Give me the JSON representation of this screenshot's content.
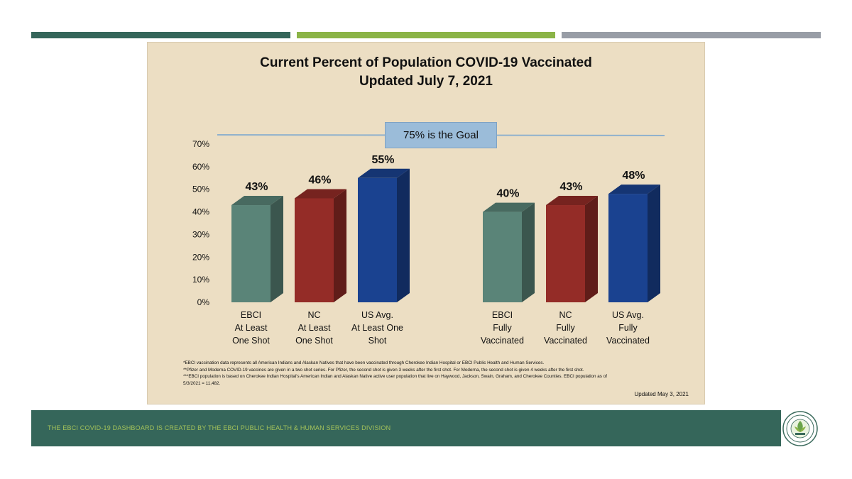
{
  "colors": {
    "bar_dark_green": "#35665a",
    "bar_light_green": "#8bb447",
    "bar_gray": "#989da6",
    "footer_bg": "#35665a",
    "footer_text": "#a3c25b",
    "goal_line": "#8fb1cd",
    "teal": "#5a8478",
    "red": "#942c27",
    "blue": "#1a4290"
  },
  "chart_data": {
    "type": "bar",
    "title": [
      "Current Percent of Population COVID-19 Vaccinated",
      "Updated July 7, 2021"
    ],
    "ylim": [
      0,
      70
    ],
    "y_ticks": [
      "0%",
      "10%",
      "20%",
      "30%",
      "40%",
      "50%",
      "60%",
      "70%"
    ],
    "goal": {
      "value": 75,
      "label": "75% is the Goal"
    },
    "categories": [
      "EBCI\nAt Least\nOne Shot",
      "NC\nAt Least\nOne Shot",
      "US Avg.\nAt Least One\nShot",
      "EBCI\nFully\nVaccinated",
      "NC\nFully\nVaccinated",
      "US Avg.\nFully\nVaccinated"
    ],
    "values": [
      43,
      46,
      55,
      40,
      43,
      48
    ],
    "data_labels": [
      "43%",
      "46%",
      "55%",
      "40%",
      "43%",
      "48%"
    ],
    "bar_colors": [
      "#5a8478",
      "#942c27",
      "#1a4290",
      "#5a8478",
      "#942c27",
      "#1a4290"
    ],
    "grid": false,
    "legend": "none"
  },
  "footnotes": [
    "*EBCI vaccination data represents all American Indians and Alaskan Natives that have been vaccinated through Cherokee Indian Hospital or EBCI Public Health and Human Services.",
    "**Pfizer and Moderna COVID-19 vaccines are given in a two shot series. For Pfizer, the second shot is given 3 weeks after the first shot. For Moderna, the second shot is given 4 weeks after the first shot.",
    "***EBCI population is based on Cherokee Indian Hospital's American Indian and Alaskan Native active user population that live on Haywood, Jackson, Swain, Graham, and Cherokee Counties. EBCI population as of 5/3/2021 = 11,482."
  ],
  "updated_note": "Updated May 3, 2021",
  "footer": {
    "text": "THE EBCI COVID-19 DASHBOARD IS CREATED BY THE EBCI PUBLIC HEALTH & HUMAN SERVICES DIVISION"
  }
}
